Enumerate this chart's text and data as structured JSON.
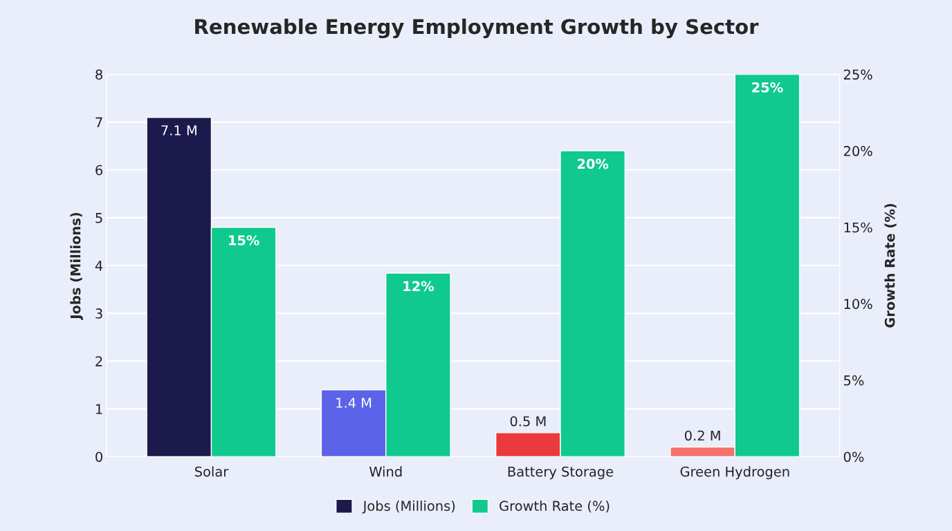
{
  "chart_data": {
    "type": "bar",
    "title": "Renewable Energy Employment Growth by Sector",
    "categories": [
      "Solar",
      "Wind",
      "Battery Storage",
      "Green Hydrogen"
    ],
    "series": [
      {
        "name": "Jobs (Millions)",
        "colors": [
          "#1c1a4d",
          "#5b64e8",
          "#ea3a3d",
          "#f5716b"
        ],
        "values": [
          7.1,
          1.4,
          0.5,
          0.2
        ],
        "value_labels": [
          "7.1 M",
          "1.4 M",
          "0.5 M",
          "0.2 M"
        ]
      },
      {
        "name": "Growth Rate (%)",
        "color": "#0fc98f",
        "axis": "y2",
        "values": [
          15,
          12,
          20,
          25
        ],
        "value_labels": [
          "15%",
          "12%",
          "20%",
          "25%"
        ]
      }
    ],
    "ylabel": "Jobs (Millions)",
    "y2label": "Growth Rate (%)",
    "ylim": [
      0,
      8
    ],
    "yticks": [
      0,
      1,
      2,
      3,
      4,
      5,
      6,
      7,
      8
    ],
    "y2lim": [
      0,
      25
    ],
    "y2ticks": [
      {
        "value": 0,
        "label": "0%"
      },
      {
        "value": 5,
        "label": "5%"
      },
      {
        "value": 10,
        "label": "10%"
      },
      {
        "value": 15,
        "label": "15%"
      },
      {
        "value": 20,
        "label": "20%"
      },
      {
        "value": 25,
        "label": "25%"
      }
    ],
    "grid": "y",
    "legend": "bottom"
  }
}
